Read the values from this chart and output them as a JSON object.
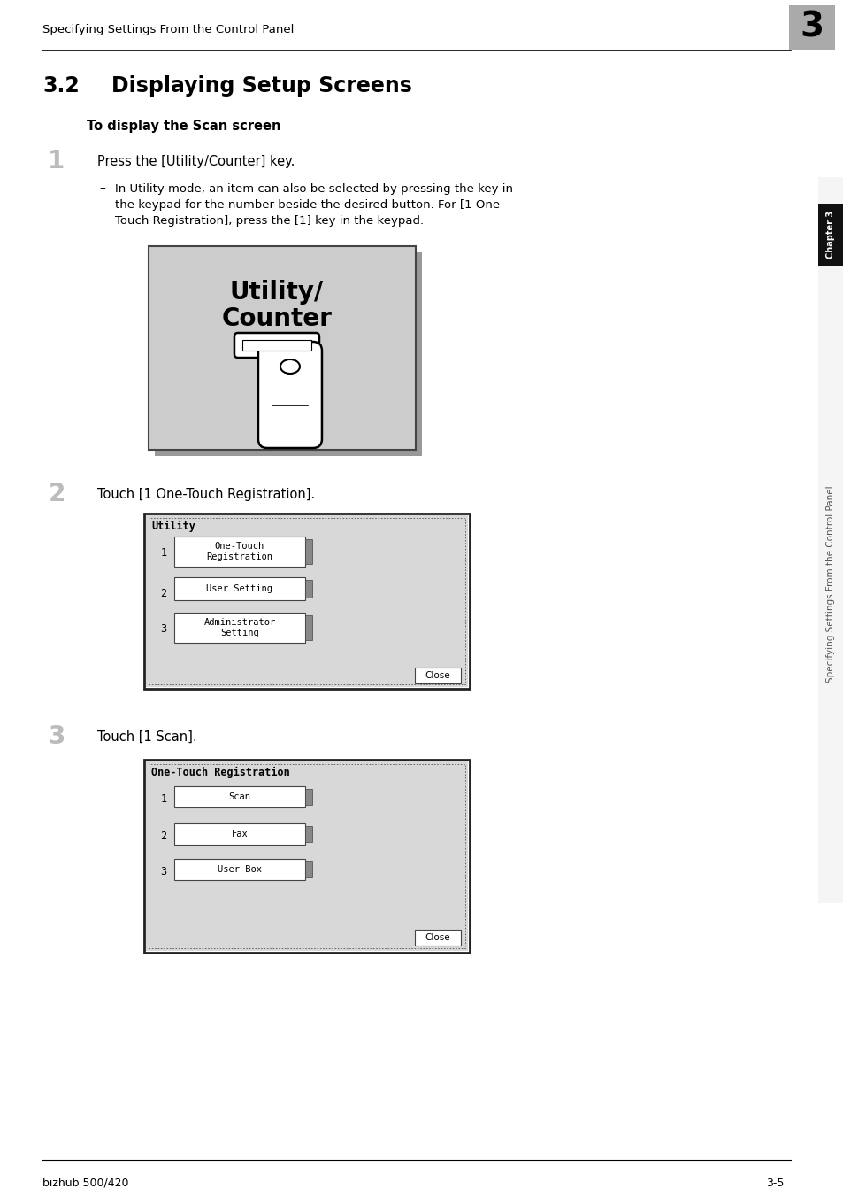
{
  "page_header": "Specifying Settings From the Control Panel",
  "chapter_num": "3",
  "section_num": "3.2",
  "section_title": "Displaying Setup Screens",
  "subsection_title": "To display the Scan screen",
  "step1_num": "1",
  "step1_text": "Press the [Utility/Counter] key.",
  "step1_note_dash": "–",
  "step1_note": "In Utility mode, an item can also be selected by pressing the key in\nthe keypad for the number beside the desired button. For [1 One-\nTouch Registration], press the [1] key in the keypad.",
  "utility_counter_label_line1": "Utility/",
  "utility_counter_label_line2": "Counter",
  "step2_num": "2",
  "step2_text": "Touch [1 One-Touch Registration].",
  "utility_menu_title": "Utility",
  "utility_menu_items": [
    {
      "num": "1",
      "label": "One-Touch\nRegistration"
    },
    {
      "num": "2",
      "label": "User Setting"
    },
    {
      "num": "3",
      "label": "Administrator\nSetting"
    }
  ],
  "utility_close_btn": "Close",
  "step3_num": "3",
  "step3_text": "Touch [1 Scan].",
  "otr_menu_title": "One-Touch Registration",
  "otr_menu_items": [
    {
      "num": "1",
      "label": "Scan"
    },
    {
      "num": "2",
      "label": "Fax"
    },
    {
      "num": "3",
      "label": "User Box"
    }
  ],
  "otr_close_btn": "Close",
  "footer_left": "bizhub 500/420",
  "footer_right": "3-5",
  "sidebar_text": "Specifying Settings From the Control Panel",
  "sidebar_chapter": "Chapter 3",
  "bg_color": "#ffffff",
  "chapter_box_color": "#aaaaaa",
  "chapter_text_color": "#ffffff",
  "image_bg_color": "#cccccc",
  "shadow_color": "#aaaaaa",
  "screen_bg_color": "#d8d8d8",
  "sidebar_chapter_bg": "#111111",
  "sidebar_chapter_text": "#ffffff",
  "sidebar_text_color": "#555555"
}
